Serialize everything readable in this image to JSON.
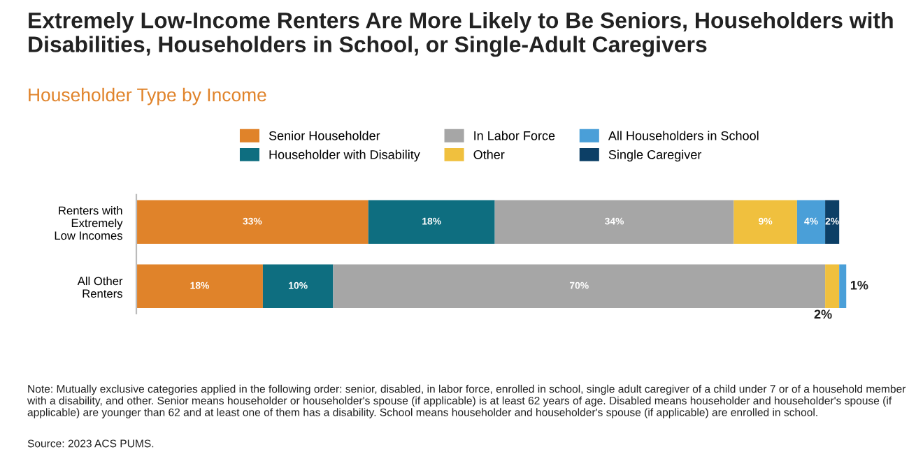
{
  "chart_data": {
    "type": "bar",
    "orientation": "horizontal",
    "stacked": true,
    "title": "Extremely Low-Income Renters Are More Likely to Be Seniors, Householders with Disabilities, Householders in School, or Single-Adult Caregivers",
    "subtitle": "Householder Type by Income",
    "categories": [
      "Renters with\nExtremely\nLow Incomes",
      "All Other\nRenters"
    ],
    "series": [
      {
        "name": "Senior Householder",
        "color": "#e0832a",
        "values": [
          33,
          18
        ],
        "value_labels": [
          "33%",
          "18%"
        ]
      },
      {
        "name": "Householder with Disability",
        "color": "#0e6e80",
        "values": [
          18,
          10
        ],
        "value_labels": [
          "18%",
          "10%"
        ]
      },
      {
        "name": "In Labor Force",
        "color": "#a6a6a6",
        "values": [
          34,
          70
        ],
        "value_labels": [
          "34%",
          "70%"
        ]
      },
      {
        "name": "Other",
        "color": "#f0c03e",
        "values": [
          9,
          2
        ],
        "value_labels": [
          "9%",
          "2%"
        ]
      },
      {
        "name": "All Householders in School",
        "color": "#4a9fd8",
        "values": [
          4,
          1
        ],
        "value_labels": [
          "4%",
          "1%"
        ]
      },
      {
        "name": "Single Caregiver",
        "color": "#0c3f66",
        "values": [
          2,
          null
        ],
        "value_labels": [
          "2%",
          null
        ]
      }
    ],
    "tick_labels": "y",
    "legend": "top",
    "grid": false,
    "annotations": [
      "Note: Mutually exclusive categories applied in the following order: senior, disabled, in labor force, enrolled in school, single adult caregiver of a child under 7 or of a household member with a disability, and other. Senior means householder or householder's spouse (if applicable) is at least 62 years of age. Disabled means householder and householder's spouse (if applicable) are younger than 62 and at least one of them has a disability. School means householder and householder's spouse (if applicable) are enrolled in school.",
      "Source: 2023 ACS PUMS."
    ]
  }
}
